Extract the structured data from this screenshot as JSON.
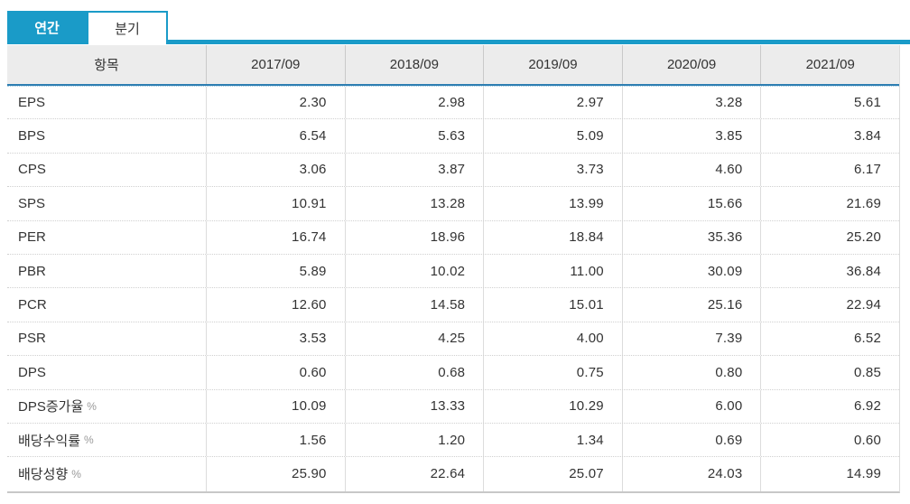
{
  "tabs": {
    "annual": "연간",
    "quarterly": "분기"
  },
  "table": {
    "header": {
      "item": "항목",
      "periods": [
        "2017/09",
        "2018/09",
        "2019/09",
        "2020/09",
        "2021/09"
      ]
    },
    "rows": [
      {
        "label": "EPS",
        "suffix": "",
        "values": [
          "2.30",
          "2.98",
          "2.97",
          "3.28",
          "5.61"
        ]
      },
      {
        "label": "BPS",
        "suffix": "",
        "values": [
          "6.54",
          "5.63",
          "5.09",
          "3.85",
          "3.84"
        ]
      },
      {
        "label": "CPS",
        "suffix": "",
        "values": [
          "3.06",
          "3.87",
          "3.73",
          "4.60",
          "6.17"
        ]
      },
      {
        "label": "SPS",
        "suffix": "",
        "values": [
          "10.91",
          "13.28",
          "13.99",
          "15.66",
          "21.69"
        ]
      },
      {
        "label": "PER",
        "suffix": "",
        "values": [
          "16.74",
          "18.96",
          "18.84",
          "35.36",
          "25.20"
        ]
      },
      {
        "label": "PBR",
        "suffix": "",
        "values": [
          "5.89",
          "10.02",
          "11.00",
          "30.09",
          "36.84"
        ]
      },
      {
        "label": "PCR",
        "suffix": "",
        "values": [
          "12.60",
          "14.58",
          "15.01",
          "25.16",
          "22.94"
        ]
      },
      {
        "label": "PSR",
        "suffix": "",
        "values": [
          "3.53",
          "4.25",
          "4.00",
          "7.39",
          "6.52"
        ]
      },
      {
        "label": "DPS",
        "suffix": "",
        "values": [
          "0.60",
          "0.68",
          "0.75",
          "0.80",
          "0.85"
        ]
      },
      {
        "label": "DPS증가율",
        "suffix": "%",
        "values": [
          "10.09",
          "13.33",
          "10.29",
          "6.00",
          "6.92"
        ]
      },
      {
        "label": "배당수익률",
        "suffix": "%",
        "values": [
          "1.56",
          "1.20",
          "1.34",
          "0.69",
          "0.60"
        ]
      },
      {
        "label": "배당성향",
        "suffix": "%",
        "values": [
          "25.90",
          "22.64",
          "25.07",
          "24.03",
          "14.99"
        ]
      }
    ]
  },
  "colors": {
    "accent": "#1a9bc8",
    "header_underline": "#2d7eb2",
    "header_bg": "#ececec"
  }
}
